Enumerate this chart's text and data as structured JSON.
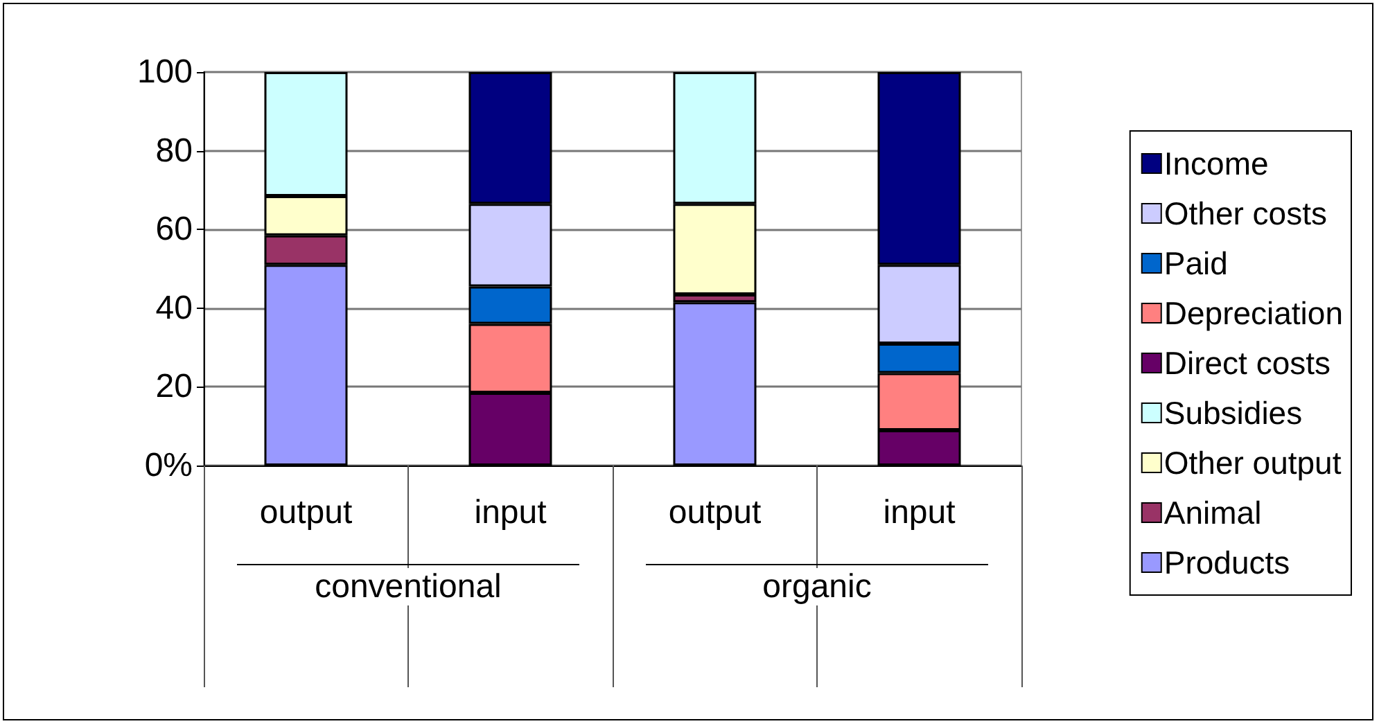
{
  "chart_data": {
    "type": "bar",
    "stacked": true,
    "categories": [
      "output",
      "input",
      "output",
      "input"
    ],
    "annotations": [
      "conventional",
      "organic"
    ],
    "series": [
      {
        "name": "Products",
        "color": "#9999ff",
        "values": [
          51,
          null,
          41.5,
          null
        ]
      },
      {
        "name": "Animal",
        "color": "#993366",
        "values": [
          7.5,
          null,
          2,
          null
        ]
      },
      {
        "name": "Other output",
        "color": "#ffffcc",
        "values": [
          10,
          null,
          23,
          null
        ]
      },
      {
        "name": "Subsidies",
        "color": "#ccffff",
        "values": [
          31.5,
          null,
          33.5,
          null
        ]
      },
      {
        "name": "Direct costs",
        "color": "#660066",
        "values": [
          null,
          18.5,
          null,
          9
        ]
      },
      {
        "name": "Depreciation",
        "color": "#ff8080",
        "values": [
          null,
          17.5,
          null,
          14.5
        ]
      },
      {
        "name": "Paid",
        "color": "#0066cc",
        "values": [
          null,
          9.5,
          null,
          7.5
        ]
      },
      {
        "name": "Other costs",
        "color": "#ccccff",
        "values": [
          null,
          21,
          null,
          20
        ]
      },
      {
        "name": "Income",
        "color": "#000080",
        "values": [
          null,
          33.5,
          null,
          49
        ]
      }
    ],
    "ylim": [
      0,
      100
    ],
    "yticks": [
      {
        "value": 0,
        "label": "0%"
      },
      20,
      40,
      60,
      80,
      100
    ],
    "grid": "y",
    "legend": "right"
  }
}
